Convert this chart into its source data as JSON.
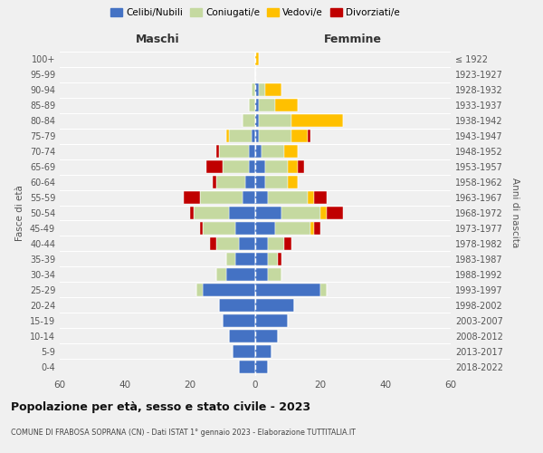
{
  "age_groups_bottom_to_top": [
    "0-4",
    "5-9",
    "10-14",
    "15-19",
    "20-24",
    "25-29",
    "30-34",
    "35-39",
    "40-44",
    "45-49",
    "50-54",
    "55-59",
    "60-64",
    "65-69",
    "70-74",
    "75-79",
    "80-84",
    "85-89",
    "90-94",
    "95-99",
    "100+"
  ],
  "birth_years_bottom_to_top": [
    "2018-2022",
    "2013-2017",
    "2008-2012",
    "2003-2007",
    "1998-2002",
    "1993-1997",
    "1988-1992",
    "1983-1987",
    "1978-1982",
    "1973-1977",
    "1968-1972",
    "1963-1967",
    "1958-1962",
    "1953-1957",
    "1948-1952",
    "1943-1947",
    "1938-1942",
    "1933-1937",
    "1928-1932",
    "1923-1927",
    "≤ 1922"
  ],
  "colors": {
    "celibi": "#4472c4",
    "coniugati": "#c5d9a0",
    "vedovi": "#ffc000",
    "divorziati": "#c00000"
  },
  "maschi": {
    "celibi": [
      5,
      7,
      8,
      10,
      11,
      16,
      9,
      6,
      5,
      6,
      8,
      4,
      3,
      2,
      2,
      1,
      0,
      0,
      0,
      0,
      0
    ],
    "coniugati": [
      0,
      0,
      0,
      0,
      0,
      2,
      3,
      3,
      7,
      10,
      11,
      13,
      9,
      8,
      9,
      7,
      4,
      2,
      1,
      0,
      0
    ],
    "vedovi": [
      0,
      0,
      0,
      0,
      0,
      0,
      0,
      0,
      0,
      0,
      0,
      0,
      0,
      0,
      0,
      1,
      0,
      0,
      0,
      0,
      0
    ],
    "divorziati": [
      0,
      0,
      0,
      0,
      0,
      0,
      0,
      0,
      2,
      1,
      1,
      5,
      1,
      5,
      1,
      0,
      0,
      0,
      0,
      0,
      0
    ]
  },
  "femmine": {
    "celibi": [
      4,
      5,
      7,
      10,
      12,
      20,
      4,
      4,
      4,
      6,
      8,
      4,
      3,
      3,
      2,
      1,
      1,
      1,
      1,
      0,
      0
    ],
    "coniugati": [
      0,
      0,
      0,
      0,
      0,
      2,
      4,
      3,
      5,
      11,
      12,
      12,
      7,
      7,
      7,
      10,
      10,
      5,
      2,
      0,
      0
    ],
    "vedovi": [
      0,
      0,
      0,
      0,
      0,
      0,
      0,
      0,
      0,
      1,
      2,
      2,
      3,
      3,
      4,
      5,
      16,
      7,
      5,
      0,
      1
    ],
    "divorziati": [
      0,
      0,
      0,
      0,
      0,
      0,
      0,
      1,
      2,
      2,
      5,
      4,
      0,
      2,
      0,
      1,
      0,
      0,
      0,
      0,
      0
    ]
  },
  "xlim": 60,
  "title": "Popolazione per età, sesso e stato civile - 2023",
  "subtitle": "COMUNE DI FRABOSA SOPRANA (CN) - Dati ISTAT 1° gennaio 2023 - Elaborazione TUTTITALIA.IT",
  "ylabel_left": "Fasce di età",
  "ylabel_right": "Anni di nascita",
  "xlabel_left": "Maschi",
  "xlabel_right": "Femmine",
  "legend_labels": [
    "Celibi/Nubili",
    "Coniugati/e",
    "Vedovi/e",
    "Divorziati/e"
  ],
  "background_color": "#f0f0f0"
}
